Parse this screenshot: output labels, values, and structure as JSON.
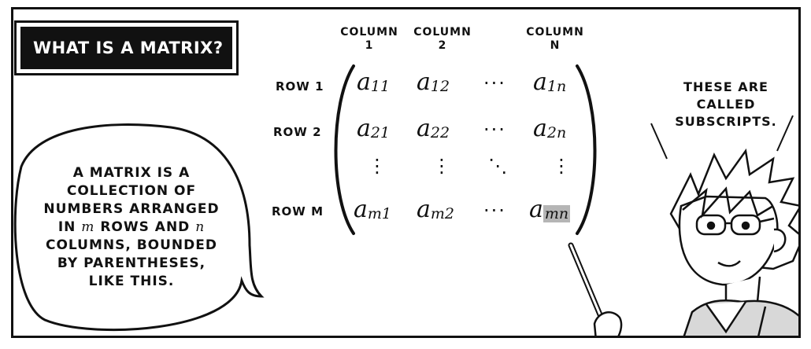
{
  "title": "WHAT IS A MATRIX?",
  "columns": [
    {
      "line1": "COLUMN",
      "line2": "1"
    },
    {
      "line1": "COLUMN",
      "line2": "2"
    },
    {
      "line1": "COLUMN",
      "line2": "N"
    }
  ],
  "rows": [
    "ROW 1",
    "ROW 2",
    "ROW M"
  ],
  "matrix": {
    "symbol": "a",
    "subscripts": [
      [
        "11",
        "12",
        "1n"
      ],
      [
        "21",
        "22",
        "2n"
      ],
      [
        "m1",
        "m2",
        "mn"
      ]
    ],
    "hdots": "···",
    "vdots": "⋮",
    "ddots": "⋱"
  },
  "left_bubble": {
    "line1": "A MATRIX IS A",
    "line2": "COLLECTION OF",
    "line3": "NUMBERS ARRANGED",
    "line4_pre": "IN",
    "line4_m": "m",
    "line4_mid": "ROWS AND",
    "line4_n": "n",
    "line5": "COLUMNS, BOUNDED",
    "line6": "BY PARENTHESES,",
    "line7": "LIKE THIS."
  },
  "character_speech": [
    "THESE ARE",
    "CALLED",
    "SUBSCRIPTS."
  ]
}
